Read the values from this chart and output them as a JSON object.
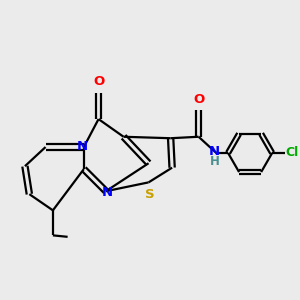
{
  "background_color": "#ebebeb",
  "atom_colors": {
    "S": "#c8a000",
    "N": "#0000ff",
    "O": "#ff0000",
    "NH": "#0000ff",
    "H": "#4a9090",
    "Cl": "#00aa00",
    "C": "#000000"
  },
  "lw": 1.6
}
